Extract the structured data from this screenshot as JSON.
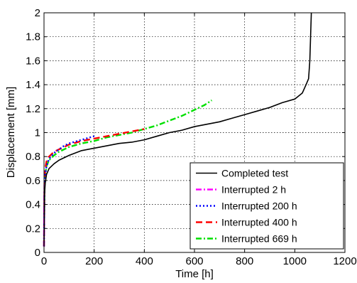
{
  "chart_data": {
    "type": "line",
    "title": "",
    "xlabel": "Time [h]",
    "ylabel": "Displacement [mm]",
    "xlim": [
      0,
      1200
    ],
    "ylim": [
      0,
      2
    ],
    "x_ticks": [
      "0",
      "200",
      "400",
      "600",
      "800",
      "1000",
      "1200"
    ],
    "y_ticks": [
      "0",
      "0.2",
      "0.4",
      "0.6",
      "0.8",
      "1",
      "1.2",
      "1.4",
      "1.6",
      "1.8",
      "2"
    ],
    "x_tick_values": [
      0,
      200,
      400,
      600,
      800,
      1000,
      1200
    ],
    "y_tick_values": [
      0,
      0.2,
      0.4,
      0.6,
      0.8,
      1.0,
      1.2,
      1.4,
      1.6,
      1.8,
      2.0
    ],
    "grid": true,
    "legend_position": "bottom-right",
    "series": [
      {
        "name": "Completed test",
        "color": "#000000",
        "dash": "solid",
        "x": [
          0,
          2,
          5,
          10,
          20,
          40,
          60,
          80,
          100,
          150,
          200,
          250,
          300,
          350,
          400,
          450,
          500,
          550,
          600,
          650,
          700,
          750,
          800,
          850,
          900,
          950,
          1000,
          1030,
          1045,
          1055,
          1060,
          1063,
          1066
        ],
        "y": [
          0.05,
          0.48,
          0.58,
          0.65,
          0.7,
          0.74,
          0.77,
          0.79,
          0.81,
          0.85,
          0.87,
          0.89,
          0.91,
          0.92,
          0.94,
          0.97,
          1.0,
          1.02,
          1.05,
          1.07,
          1.09,
          1.12,
          1.15,
          1.18,
          1.21,
          1.25,
          1.28,
          1.33,
          1.4,
          1.45,
          1.6,
          1.8,
          2.0
        ]
      },
      {
        "name": "Interrupted 2 h",
        "color": "#ff00ff",
        "dash": "dashdot",
        "x": [
          0,
          0.5,
          1,
          2
        ],
        "y": [
          0.05,
          0.4,
          0.5,
          0.58
        ]
      },
      {
        "name": "Interrupted 200 h",
        "color": "#0000ff",
        "dash": "dotted",
        "x": [
          0,
          2,
          5,
          10,
          20,
          40,
          60,
          80,
          100,
          150,
          200
        ],
        "y": [
          0.05,
          0.55,
          0.65,
          0.72,
          0.78,
          0.83,
          0.86,
          0.89,
          0.91,
          0.94,
          0.97
        ]
      },
      {
        "name": "Interrupted 400 h",
        "color": "#ff0000",
        "dash": "dashed",
        "x": [
          0,
          2,
          5,
          10,
          20,
          40,
          60,
          80,
          100,
          150,
          200,
          250,
          300,
          350,
          400
        ],
        "y": [
          0.05,
          0.6,
          0.7,
          0.76,
          0.8,
          0.84,
          0.86,
          0.88,
          0.9,
          0.93,
          0.95,
          0.97,
          0.99,
          1.01,
          1.03
        ]
      },
      {
        "name": "Interrupted 669 h",
        "color": "#00e000",
        "dash": "dashdot",
        "x": [
          0,
          2,
          5,
          10,
          20,
          40,
          60,
          80,
          100,
          150,
          200,
          250,
          300,
          350,
          400,
          450,
          500,
          550,
          600,
          640,
          669
        ],
        "y": [
          0.05,
          0.55,
          0.65,
          0.72,
          0.77,
          0.81,
          0.84,
          0.86,
          0.88,
          0.91,
          0.93,
          0.96,
          0.98,
          1.0,
          1.03,
          1.06,
          1.1,
          1.14,
          1.19,
          1.23,
          1.27
        ]
      }
    ]
  }
}
